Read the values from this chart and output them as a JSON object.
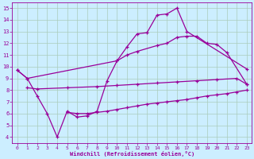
{
  "background_color": "#cceeff",
  "grid_color": "#aaccbb",
  "line_color": "#990099",
  "xlim": [
    -0.5,
    23.5
  ],
  "ylim": [
    3.5,
    15.5
  ],
  "xlabel": "Windchill (Refroidissement éolien,°C)",
  "xticks": [
    0,
    1,
    2,
    3,
    4,
    5,
    6,
    7,
    8,
    9,
    10,
    11,
    12,
    13,
    14,
    15,
    16,
    17,
    18,
    19,
    20,
    21,
    22,
    23
  ],
  "yticks": [
    4,
    5,
    6,
    7,
    8,
    9,
    10,
    11,
    12,
    13,
    14,
    15
  ],
  "line1_x": [
    0,
    1,
    2,
    3,
    4,
    5,
    6,
    7,
    8,
    9,
    10,
    11,
    12,
    13,
    14,
    15,
    16,
    17,
    23
  ],
  "line1_y": [
    9.7,
    9.0,
    7.5,
    6.0,
    4.0,
    6.2,
    5.7,
    5.8,
    6.2,
    8.8,
    10.5,
    11.7,
    12.8,
    12.9,
    14.4,
    14.5,
    15.0,
    13.0,
    9.8
  ],
  "line2_x": [
    0,
    1,
    10,
    11,
    12,
    14,
    15,
    16,
    17,
    18,
    19,
    20,
    21,
    23
  ],
  "line2_y": [
    9.7,
    9.0,
    10.5,
    11.0,
    11.3,
    11.8,
    12.0,
    12.5,
    12.6,
    12.6,
    12.0,
    11.9,
    11.2,
    8.5
  ],
  "line3_x": [
    1,
    2,
    5,
    8,
    10,
    12,
    14,
    16,
    18,
    20,
    22,
    23
  ],
  "line3_y": [
    8.2,
    8.1,
    8.2,
    8.3,
    8.4,
    8.5,
    8.6,
    8.7,
    8.8,
    8.9,
    9.0,
    8.5
  ],
  "line4_x": [
    5,
    6,
    7,
    8,
    9,
    10,
    11,
    12,
    13,
    14,
    15,
    16,
    17,
    18,
    19,
    20,
    21,
    22,
    23
  ],
  "line4_y": [
    6.1,
    6.0,
    6.0,
    6.1,
    6.2,
    6.35,
    6.5,
    6.65,
    6.8,
    6.9,
    7.0,
    7.1,
    7.2,
    7.35,
    7.5,
    7.6,
    7.7,
    7.85,
    8.0
  ]
}
